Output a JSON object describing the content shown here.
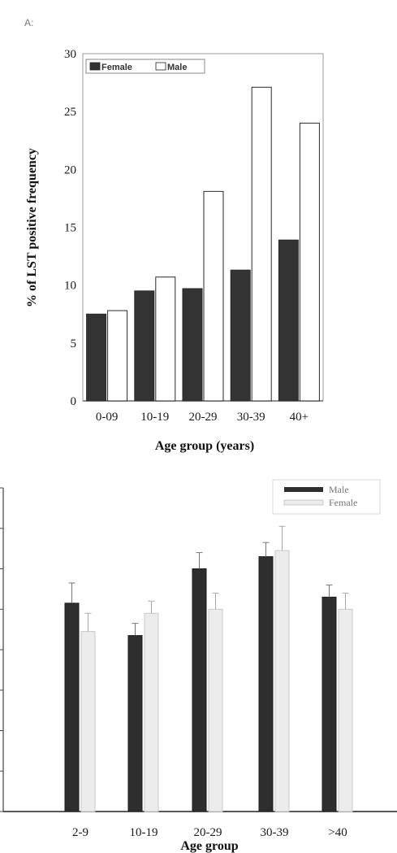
{
  "chart_data": [
    {
      "type": "bar",
      "panel_label": "A:",
      "title": "",
      "xlabel": "Age group (years)",
      "ylabel": "% of LST positive frequency",
      "ylim": [
        0,
        30
      ],
      "yticks": [
        "0",
        "5",
        "10",
        "15",
        "20",
        "25",
        "30"
      ],
      "categories": [
        "0-09",
        "10-19",
        "20-29",
        "30-39",
        "40+"
      ],
      "series": [
        {
          "name": "Female",
          "color": "#333333",
          "values": [
            7.5,
            9.5,
            9.7,
            11.3,
            13.9
          ]
        },
        {
          "name": "Male",
          "color": "#ffffff",
          "values": [
            7.8,
            10.7,
            18.1,
            27.1,
            24.0
          ]
        }
      ],
      "legend": "top-left",
      "grid": false
    },
    {
      "type": "bar",
      "title": "",
      "xlabel": "Age group",
      "ylabel": "",
      "ylim": [
        0,
        16
      ],
      "categories": [
        "2-9",
        "10-19",
        "20-29",
        "30-39",
        ">40"
      ],
      "series": [
        {
          "name": "Male",
          "color": "#2e2e2e",
          "values": [
            10.3,
            8.7,
            12.0,
            12.6,
            10.6
          ],
          "errors": [
            1.0,
            0.6,
            0.8,
            0.7,
            0.6
          ]
        },
        {
          "name": "Female",
          "color": "#ececec",
          "values": [
            8.9,
            9.8,
            10.0,
            12.9,
            10.0
          ],
          "errors": [
            0.9,
            0.6,
            0.8,
            1.2,
            0.8
          ]
        }
      ],
      "legend": "top-right",
      "grid": false
    }
  ]
}
